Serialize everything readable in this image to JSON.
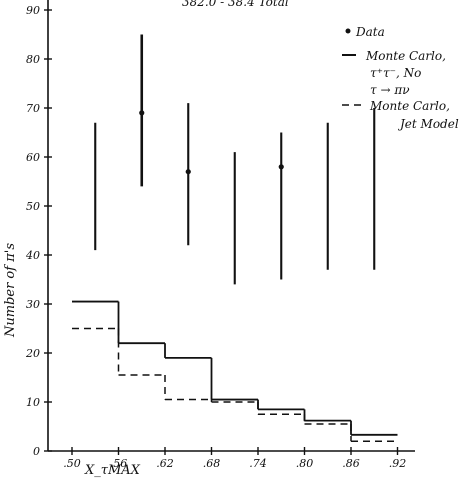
{
  "chart_data": {
    "type": "histogram",
    "header_text": "382.0 - 38.4 Total",
    "xlabel": "X_τMAX",
    "ylabel": "Number of π's",
    "xlim": [
      0.47,
      0.95
    ],
    "ylim": [
      0,
      95
    ],
    "x_ticks": [
      0.5,
      0.56,
      0.62,
      0.68,
      0.74,
      0.8,
      0.86,
      0.92
    ],
    "x_tick_labels": [
      ".50",
      ".56",
      ".62",
      ".68",
      ".74",
      ".80",
      ".86",
      ".92"
    ],
    "y_ticks": [
      0,
      10,
      20,
      30,
      40,
      50,
      60,
      70,
      80,
      90
    ],
    "y_tick_labels": [
      "0",
      "10",
      "20",
      "30",
      "40",
      "50",
      "60",
      "70",
      "80",
      "90"
    ],
    "data": {
      "name": "Data",
      "x": [
        0.53,
        0.59,
        0.65,
        0.71,
        0.77,
        0.83,
        0.89
      ],
      "y": [
        null,
        69,
        57,
        null,
        58,
        null,
        null
      ],
      "yerr_low": [
        41,
        54,
        42,
        34,
        35,
        37,
        37
      ],
      "yerr_high": [
        67,
        85,
        71,
        61,
        65,
        67,
        70
      ]
    },
    "series": [
      {
        "name": "Monte Carlo, τ⁺τ⁻, No τ → πν",
        "style": "solid",
        "bin_edges": [
          0.5,
          0.56,
          0.62,
          0.68,
          0.74,
          0.8,
          0.86,
          0.92
        ],
        "values": [
          30.5,
          22,
          19,
          10.5,
          8.5,
          6.2,
          3.3
        ]
      },
      {
        "name": "Monte Carlo, Jet Model",
        "style": "dashed",
        "bin_edges": [
          0.5,
          0.56,
          0.62,
          0.68,
          0.74,
          0.8,
          0.86,
          0.92
        ],
        "values": [
          25,
          15.5,
          10.5,
          10,
          7.5,
          5.5,
          2
        ]
      }
    ],
    "legend": {
      "placement": "top-right",
      "data_label": "Data",
      "mc1_lines": [
        "Monte Carlo,",
        "τ⁺τ⁻, No",
        "τ → πν"
      ],
      "mc2_lines": [
        "Monte Carlo,",
        "Jet Model"
      ]
    },
    "grid": false
  }
}
